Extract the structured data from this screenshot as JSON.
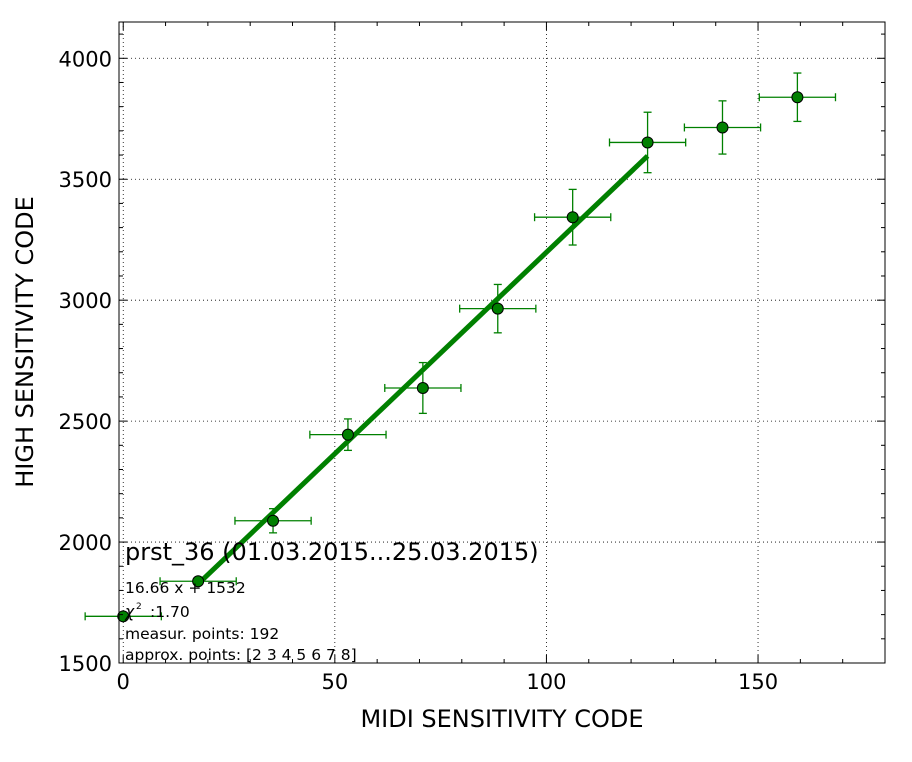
{
  "chart_data": {
    "type": "scatter",
    "xlabel": "MIDI SENSITIVITY CODE",
    "ylabel": "HIGH SENSITIVITY CODE",
    "xlim": [
      -1,
      180
    ],
    "ylim": [
      1500,
      4150
    ],
    "x_ticks": [
      0,
      50,
      100,
      150
    ],
    "y_ticks": [
      1500,
      2000,
      2500,
      3000,
      3500,
      4000
    ],
    "grid": true,
    "grid_style": "dotted",
    "color": "#008000",
    "points": [
      {
        "x": 0,
        "y": 1693,
        "xerr": 9,
        "yerr": 0
      },
      {
        "x": 17.7,
        "y": 1838,
        "xerr": 9,
        "yerr": 0
      },
      {
        "x": 35.4,
        "y": 2088,
        "xerr": 9,
        "yerr": 50
      },
      {
        "x": 53.1,
        "y": 2444,
        "xerr": 9,
        "yerr": 65
      },
      {
        "x": 70.8,
        "y": 2637,
        "xerr": 9,
        "yerr": 105
      },
      {
        "x": 88.5,
        "y": 2965,
        "xerr": 9,
        "yerr": 100
      },
      {
        "x": 106.2,
        "y": 3343,
        "xerr": 9,
        "yerr": 115
      },
      {
        "x": 123.9,
        "y": 3652,
        "xerr": 9,
        "yerr": 125
      },
      {
        "x": 141.6,
        "y": 3714,
        "xerr": 9,
        "yerr": 110
      },
      {
        "x": 159.3,
        "y": 3839,
        "xerr": 9,
        "yerr": 100
      }
    ],
    "fit_line": {
      "x": [
        17.7,
        123.9
      ],
      "y": [
        1826.9,
        3596.2
      ]
    },
    "annotation": {
      "title": "prst_36 (01.03.2015...25.03.2015)",
      "equation": "16.66 x + 1532",
      "chi_symbol": "χ",
      "chi_sup": "2",
      "chi_value": ":1.70",
      "measur_points": "measur. points: 192",
      "approx_points": "approx. points: [2 3 4 5 6 7 8]"
    }
  }
}
